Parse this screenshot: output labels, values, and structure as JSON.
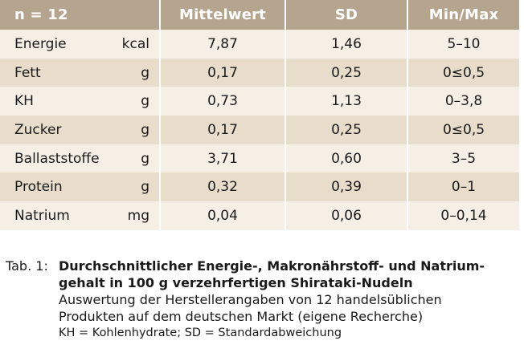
{
  "table": {
    "headers": [
      "n = 12",
      "Mittelwert",
      "SD",
      "Min/Max"
    ],
    "rows": [
      {
        "name": "Energie",
        "unit": "kcal",
        "mean": "7,87",
        "sd": "1,46",
        "minmax": "5–10"
      },
      {
        "name": "Fett",
        "unit": "g",
        "mean": "0,17",
        "sd": "0,25",
        "minmax": "0≤0,5"
      },
      {
        "name": "KH",
        "unit": "g",
        "mean": "0,73",
        "sd": "1,13",
        "minmax": "0–3,8"
      },
      {
        "name": "Zucker",
        "unit": "g",
        "mean": "0,17",
        "sd": "0,25",
        "minmax": "0≤0,5"
      },
      {
        "name": "Ballaststoffe",
        "unit": "g",
        "mean": "3,71",
        "sd": "0,60",
        "minmax": "3–5"
      },
      {
        "name": "Protein",
        "unit": "g",
        "mean": "0,32",
        "sd": "0,39",
        "minmax": "0–1"
      },
      {
        "name": "Natrium",
        "unit": "mg",
        "mean": "0,04",
        "sd": "0,06",
        "minmax": "0–0,14"
      }
    ]
  },
  "caption": {
    "prefix": "Tab. 1:",
    "title_line1": "Durchschnittlicher Energie-, Makronährstoff-  und Natrium-",
    "title_line2": "gehalt in 100 g verzehrfertigen Shirataki-Nudeln",
    "desc_line1": "Auswertung der Herstellerangaben von 12 handelsüblichen",
    "desc_line2": "Produkten auf dem deutschen Markt (eigene Recherche)",
    "note": "KH = Kohlenhydrate; SD = Standardabweichung"
  },
  "colors": {
    "header_bg": "#b5a58f",
    "row_light": "#f6efe5",
    "row_dark": "#e8dcca"
  }
}
